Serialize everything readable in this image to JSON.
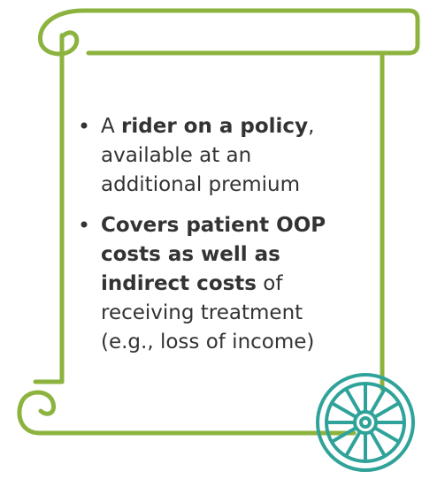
{
  "bullets": [
    {
      "lines": [
        [
          {
            "text": "A ",
            "bold": false
          },
          {
            "text": "rider on a policy",
            "bold": true
          },
          {
            "text": ",",
            "bold": false
          }
        ],
        [
          {
            "text": "available at an",
            "bold": false
          }
        ],
        [
          {
            "text": "additional premium",
            "bold": false
          }
        ]
      ]
    },
    {
      "lines": [
        [
          {
            "text": "Covers patient OOP",
            "bold": true
          }
        ],
        [
          {
            "text": "costs as well as",
            "bold": true
          }
        ],
        [
          {
            "text": "indirect costs",
            "bold": true
          },
          {
            "text": " of",
            "bold": false
          }
        ],
        [
          {
            "text": "receiving treatment",
            "bold": false
          }
        ],
        [
          {
            "text": "(e.g., loss of income)",
            "bold": false
          }
        ]
      ]
    }
  ]
}
